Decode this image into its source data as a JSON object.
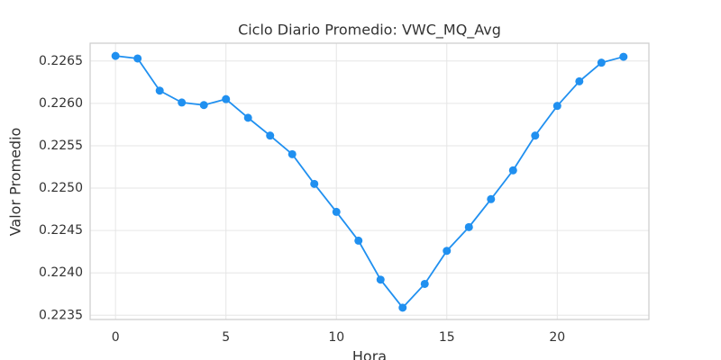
{
  "chart_data": {
    "type": "line",
    "title": "Ciclo Diario Promedio: VWC_MQ_Avg",
    "x_label": "Hora",
    "y_label": "Valor Promedio",
    "x": [
      0,
      1,
      2,
      3,
      4,
      5,
      6,
      7,
      8,
      9,
      10,
      11,
      12,
      13,
      14,
      15,
      16,
      17,
      18,
      19,
      20,
      21,
      22,
      23
    ],
    "values": [
      0.22656,
      0.22653,
      0.22615,
      0.22601,
      0.22598,
      0.22605,
      0.22583,
      0.22562,
      0.2254,
      0.22505,
      0.22472,
      0.22438,
      0.22392,
      0.22359,
      0.22387,
      0.22426,
      0.22454,
      0.22487,
      0.22521,
      0.22562,
      0.22597,
      0.22626,
      0.22648,
      0.22655
    ],
    "color": "#2090f0",
    "xlim": [
      -1.15,
      24.15
    ],
    "xticks": [
      0,
      5,
      10,
      15,
      20
    ],
    "ylim": [
      0.22345,
      0.22671
    ],
    "yticks": [
      0.2235,
      {
        "value": 0.224,
        "label": "0.2240"
      },
      0.2245,
      {
        "value": 0.225,
        "label": "0.2250"
      },
      0.2255,
      {
        "value": 0.226,
        "label": "0.2260"
      },
      0.2265
    ],
    "grid": true
  }
}
